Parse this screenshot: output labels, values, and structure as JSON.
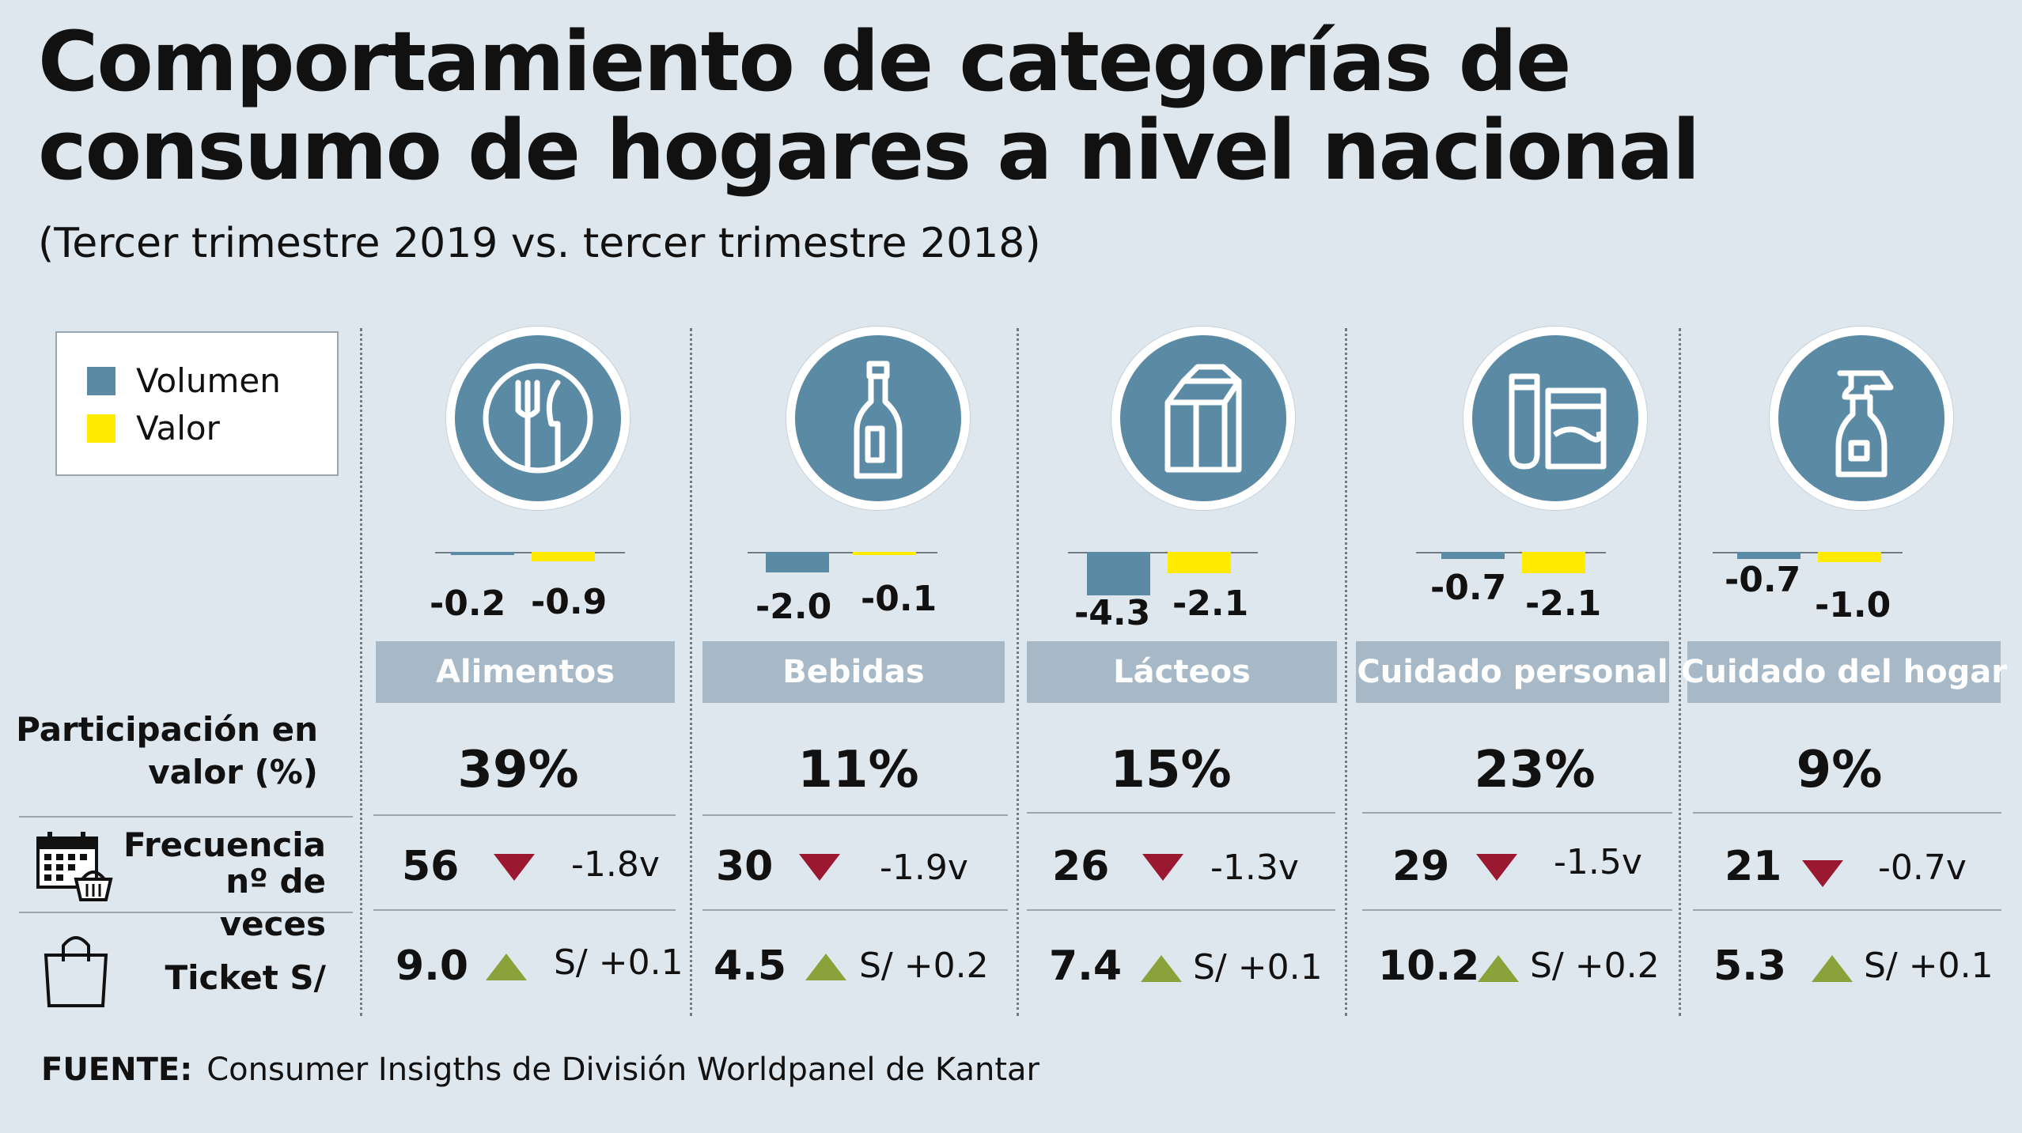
{
  "title": "Comportamiento de categorías de consumo de hogares a nivel nacional",
  "subtitle": "(Tercer trimestre 2019 vs. tercer trimestre 2018)",
  "legend": {
    "volumen": "Volumen",
    "valor": "Valor"
  },
  "colors": {
    "volumen": "#5b8aa5",
    "valor": "#ffeb00",
    "down": "#9a1830",
    "up": "#8aa23a",
    "icon_bg": "#5b8aa5",
    "header_bg": "#a7b9c7"
  },
  "row_labels": {
    "share_line1": "Participación en",
    "share_line2": "valor (%)",
    "freq_line1": "Frecuencia",
    "freq_line2": "nº de veces",
    "ticket": "Ticket S/"
  },
  "icons": [
    "plate-cutlery-icon",
    "bottle-icon",
    "milk-carton-icon",
    "cosmetics-icon",
    "spray-bottle-icon"
  ],
  "chart_data": {
    "type": "bar",
    "categories": [
      "Alimentos",
      "Bebidas",
      "Lácteos",
      "Cuidado personal",
      "Cuidado del hogar"
    ],
    "series": [
      {
        "name": "Volumen",
        "values": [
          -0.2,
          -2.0,
          -4.3,
          -0.7,
          -0.7
        ]
      },
      {
        "name": "Valor",
        "values": [
          -0.9,
          -0.1,
          -2.1,
          -2.1,
          -1.0
        ]
      }
    ],
    "value_labels": {
      "volumen": [
        "-0.2",
        "-2.0",
        "-4.3",
        "-0.7",
        "-0.7"
      ],
      "valor": [
        "-0.9",
        "-0.1",
        "-2.1",
        "-2.1",
        "-1.0"
      ]
    },
    "share_pct": [
      "39%",
      "11%",
      "15%",
      "23%",
      "9%"
    ],
    "frequency": [
      "56",
      "30",
      "26",
      "29",
      "21"
    ],
    "frequency_change": [
      "-1.8v",
      "-1.9v",
      "-1.3v",
      "-1.5v",
      "-0.7v"
    ],
    "frequency_direction": [
      "down",
      "down",
      "down",
      "down",
      "down"
    ],
    "ticket": [
      "9.0",
      "4.5",
      "7.4",
      "10.2",
      "5.3"
    ],
    "ticket_change": [
      "S/ +0.1",
      "S/ +0.2",
      "S/ +0.1",
      "S/ +0.2",
      "S/ +0.1"
    ],
    "ticket_direction": [
      "up",
      "up",
      "up",
      "up",
      "up"
    ],
    "ylim": [
      -4.3,
      0
    ]
  },
  "source": {
    "label": "FUENTE:",
    "text": "Consumer Insigths de División Worldpanel de Kantar"
  }
}
